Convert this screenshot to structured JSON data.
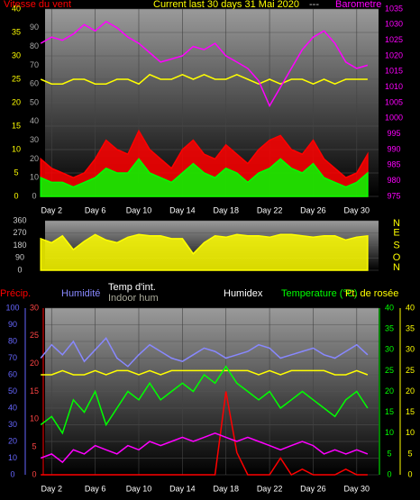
{
  "chart_data": [
    {
      "type": "line",
      "y_label": "Vitesse du vent",
      "title": "Current last 30 days 31 Mai 2020",
      "subtitle": "---",
      "y2_label": "Barometre",
      "x": [
        1,
        2,
        3,
        4,
        5,
        6,
        7,
        8,
        9,
        10,
        11,
        12,
        13,
        14,
        15,
        16,
        17,
        18,
        19,
        20,
        21,
        22,
        23,
        24,
        25,
        26,
        27,
        28,
        29,
        30,
        31
      ],
      "xlim": [
        1.4,
        32
      ],
      "xticks": [
        {
          "value": 2,
          "label": "Day 2"
        },
        {
          "value": 6,
          "label": "Day 6"
        },
        {
          "value": 10,
          "label": "Day 10"
        },
        {
          "value": 14,
          "label": "Day 14"
        },
        {
          "value": 18,
          "label": "Day 18"
        },
        {
          "value": 22,
          "label": "Day 22"
        },
        {
          "value": 26,
          "label": "Day 26"
        },
        {
          "value": 30,
          "label": "Day 30"
        }
      ],
      "ylim": [
        0,
        40
      ],
      "yticks": [
        0,
        5,
        10,
        15,
        20,
        25,
        30,
        35,
        40
      ],
      "y3lim": [
        0,
        100
      ],
      "y3ticks": [
        0,
        10,
        20,
        30,
        40,
        50,
        60,
        70,
        80,
        90
      ],
      "y2lim": [
        975,
        1035
      ],
      "y2ticks": [
        975,
        980,
        985,
        990,
        995,
        1000,
        1005,
        1010,
        1015,
        1020,
        1025,
        1030,
        1035
      ],
      "grid": true,
      "series": [
        {
          "color": "#ff0000",
          "kind": "area",
          "axis": "y",
          "values": [
            8,
            6,
            5,
            4,
            5,
            8,
            12,
            10,
            9,
            14,
            10,
            8,
            6,
            10,
            12,
            9,
            8,
            11,
            9,
            7,
            10,
            12,
            13,
            10,
            9,
            12,
            8,
            6,
            4,
            5,
            9
          ]
        },
        {
          "color": "#00ff00",
          "kind": "area",
          "axis": "y",
          "values": [
            4,
            3,
            3,
            2,
            3,
            4,
            6,
            5,
            5,
            8,
            5,
            4,
            3,
            5,
            7,
            5,
            4,
            6,
            5,
            3,
            5,
            6,
            8,
            6,
            5,
            7,
            4,
            3,
            2,
            3,
            5
          ]
        },
        {
          "color": "#ffff00",
          "kind": "line",
          "axis": "y",
          "values": [
            25,
            24,
            24,
            25,
            25,
            24,
            24,
            25,
            25,
            24,
            26,
            25,
            25,
            26,
            25,
            26,
            25,
            25,
            26,
            25,
            24,
            25,
            24,
            25,
            25,
            24,
            25,
            24,
            25,
            25,
            25
          ]
        },
        {
          "color": "#ff00ff",
          "kind": "line",
          "axis": "y2",
          "values": [
            1024,
            1026,
            1025,
            1027,
            1030,
            1028,
            1031,
            1029,
            1026,
            1024,
            1021,
            1018,
            1019,
            1020,
            1023,
            1022,
            1024,
            1020,
            1018,
            1016,
            1012,
            1004,
            1010,
            1016,
            1022,
            1026,
            1028,
            1024,
            1018,
            1016,
            1017
          ]
        }
      ]
    },
    {
      "type": "line",
      "x": [
        1,
        2,
        3,
        4,
        5,
        6,
        7,
        8,
        9,
        10,
        11,
        12,
        13,
        14,
        15,
        16,
        17,
        18,
        19,
        20,
        21,
        22,
        23,
        24,
        25,
        26,
        27,
        28,
        29,
        30,
        31
      ],
      "xlim": [
        1.4,
        32
      ],
      "ylim": [
        0,
        360
      ],
      "yticks": [
        0,
        90,
        180,
        270,
        360
      ],
      "direction_labels": [
        "N",
        "O",
        "S",
        "E",
        "N"
      ],
      "grid": true,
      "series": [
        {
          "color": "#ffff00",
          "kind": "area",
          "axis": "y",
          "values": [
            230,
            200,
            250,
            150,
            210,
            260,
            220,
            200,
            240,
            260,
            250,
            250,
            230,
            230,
            120,
            200,
            250,
            240,
            260,
            250,
            250,
            240,
            260,
            260,
            250,
            240,
            250,
            250,
            220,
            240,
            250
          ]
        }
      ]
    },
    {
      "type": "line",
      "labels": [
        "Précip.",
        "Humidité",
        "Temp d'int.",
        "Indoor hum",
        "Humidex",
        "Temperature (°C)",
        "Pt. de rosée"
      ],
      "x": [
        1,
        2,
        3,
        4,
        5,
        6,
        7,
        8,
        9,
        10,
        11,
        12,
        13,
        14,
        15,
        16,
        17,
        18,
        19,
        20,
        21,
        22,
        23,
        24,
        25,
        26,
        27,
        28,
        29,
        30,
        31
      ],
      "xlim": [
        1.4,
        32
      ],
      "xticks": [
        {
          "value": 2,
          "label": "Day 2"
        },
        {
          "value": 6,
          "label": "Day 6"
        },
        {
          "value": 10,
          "label": "Day 10"
        },
        {
          "value": 14,
          "label": "Day 14"
        },
        {
          "value": 18,
          "label": "Day 18"
        },
        {
          "value": 22,
          "label": "Day 22"
        },
        {
          "value": 26,
          "label": "Day 26"
        },
        {
          "value": 30,
          "label": "Day 30"
        }
      ],
      "ylim": [
        0,
        100
      ],
      "yticks": [
        0,
        10,
        20,
        30,
        40,
        50,
        60,
        70,
        80,
        90,
        100
      ],
      "y3lim": [
        0,
        30
      ],
      "y3ticks": [
        0,
        5,
        10,
        15,
        20,
        25,
        30
      ],
      "y2lim": [
        0,
        40
      ],
      "y2ticks": [
        0,
        5,
        10,
        15,
        20,
        25,
        30,
        35,
        40
      ],
      "y4lim": [
        0,
        40
      ],
      "y4ticks": [
        0,
        5,
        10,
        15,
        20,
        25,
        30,
        35,
        40
      ],
      "grid": true,
      "series": [
        {
          "color": "#8888ff",
          "kind": "line",
          "axis": "y",
          "values": [
            70,
            78,
            72,
            80,
            68,
            75,
            82,
            70,
            65,
            72,
            78,
            74,
            70,
            68,
            72,
            76,
            74,
            70,
            72,
            74,
            78,
            76,
            70,
            72,
            74,
            76,
            72,
            70,
            74,
            78,
            72
          ]
        },
        {
          "color": "#ff0000",
          "kind": "line",
          "axis": "y3",
          "values": [
            0,
            0,
            0,
            0,
            0,
            0,
            0,
            0,
            0,
            0,
            0,
            0,
            0,
            0,
            0,
            0,
            0,
            15,
            4,
            0,
            0,
            0,
            3,
            0,
            1,
            0,
            0,
            0,
            1,
            0,
            0
          ]
        },
        {
          "color": "#ffff00",
          "kind": "line",
          "axis": "y2",
          "values": [
            24,
            24,
            25,
            24,
            24,
            25,
            24,
            25,
            25,
            24,
            25,
            24,
            25,
            25,
            25,
            25,
            25,
            25,
            25,
            25,
            24,
            25,
            24,
            25,
            25,
            25,
            25,
            24,
            24,
            25,
            24
          ]
        },
        {
          "color": "#00ff00",
          "kind": "line",
          "axis": "y2",
          "values": [
            12,
            14,
            10,
            18,
            15,
            20,
            12,
            16,
            20,
            18,
            22,
            18,
            20,
            22,
            20,
            24,
            22,
            26,
            22,
            20,
            18,
            20,
            16,
            18,
            20,
            18,
            16,
            14,
            18,
            20,
            16
          ]
        },
        {
          "color": "#ff00ff",
          "kind": "line",
          "axis": "y2",
          "values": [
            4,
            5,
            3,
            6,
            5,
            7,
            6,
            5,
            7,
            6,
            8,
            7,
            8,
            9,
            8,
            9,
            10,
            9,
            8,
            9,
            8,
            7,
            6,
            7,
            8,
            7,
            5,
            6,
            5,
            6,
            5
          ]
        }
      ]
    }
  ]
}
